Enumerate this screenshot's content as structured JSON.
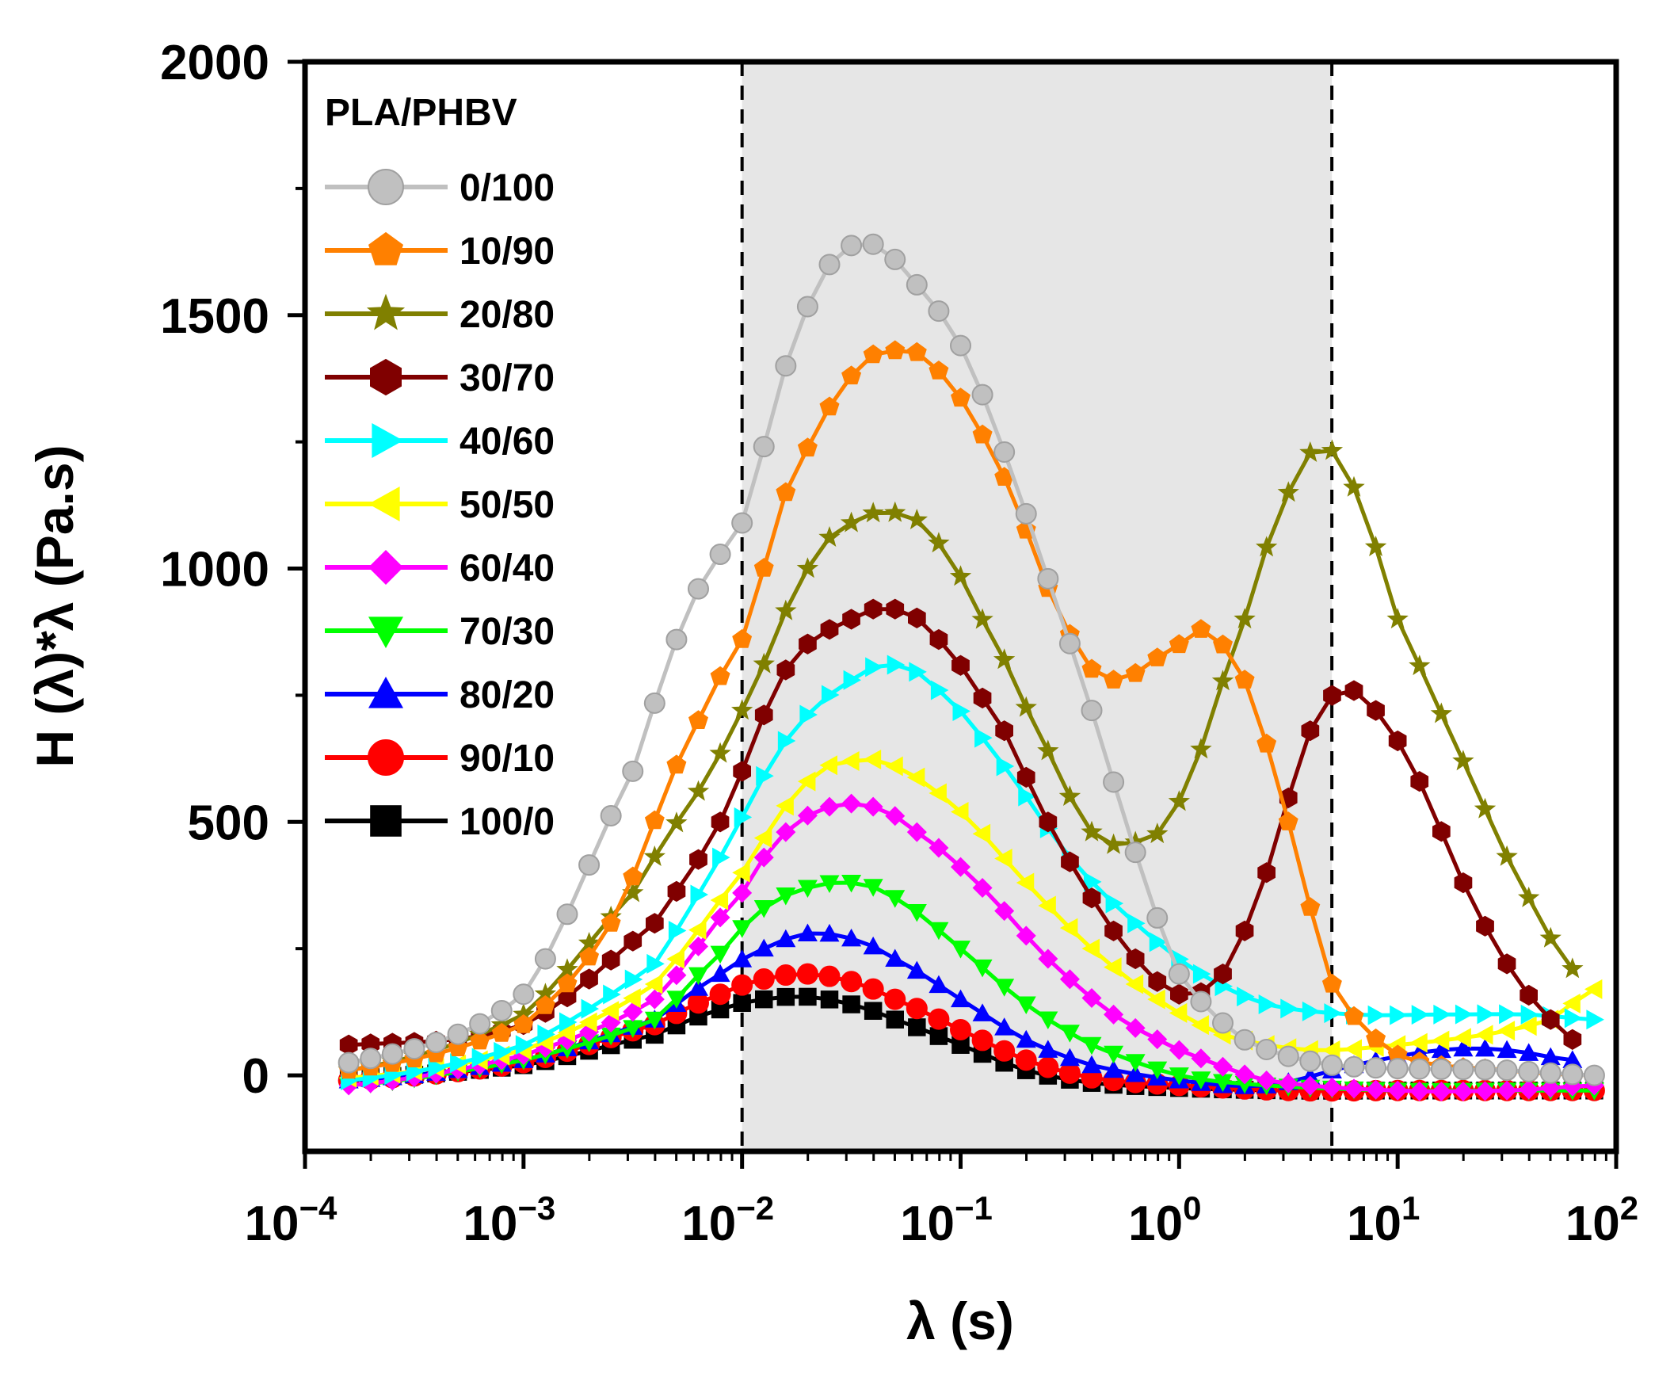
{
  "chart_data": {
    "type": "line",
    "title": "",
    "xlabel": "λ (s)",
    "ylabel": "H (λ)*λ (Pa.s)",
    "x_scale": "log",
    "xlim": [
      0.0001,
      100
    ],
    "ylim": [
      -150,
      2000
    ],
    "y_ticks": [
      0,
      500,
      1000,
      1500,
      2000
    ],
    "x_tick_labels": [
      {
        "value": 0.0001,
        "base": "10",
        "exp": "−4"
      },
      {
        "value": 0.001,
        "base": "10",
        "exp": "−3"
      },
      {
        "value": 0.01,
        "base": "10",
        "exp": "−2"
      },
      {
        "value": 0.1,
        "base": "10",
        "exp": "−1"
      },
      {
        "value": 1,
        "base": "10",
        "exp": "0"
      },
      {
        "value": 10,
        "base": "10",
        "exp": "1"
      },
      {
        "value": 100,
        "base": "10",
        "exp": "2"
      }
    ],
    "shaded_region": {
      "x_start": 0.01,
      "x_end": 5,
      "color": "#e6e6e6"
    },
    "dashed_lines_x": [
      0.01,
      5
    ],
    "legend_title": "PLA/PHBV",
    "legend_position": "top-left",
    "series": [
      {
        "name": "0/100",
        "color": "#c0c0c0",
        "marker": "circle",
        "points": [
          [
            -3.8,
            25
          ],
          [
            -3.0,
            160
          ],
          [
            -2.5,
            600
          ],
          [
            -2.2,
            960
          ],
          [
            -2.0,
            1090
          ],
          [
            -1.8,
            1400
          ],
          [
            -1.6,
            1600
          ],
          [
            -1.4,
            1640
          ],
          [
            -1.2,
            1560
          ],
          [
            -1.0,
            1440
          ],
          [
            -0.8,
            1230
          ],
          [
            -0.6,
            980
          ],
          [
            -0.4,
            720
          ],
          [
            -0.2,
            440
          ],
          [
            0.0,
            200
          ],
          [
            0.3,
            70
          ],
          [
            0.7,
            20
          ],
          [
            1.5,
            10
          ],
          [
            1.9,
            0
          ]
        ]
      },
      {
        "name": "10/90",
        "color": "#ff8000",
        "marker": "pentagon",
        "points": [
          [
            -3.8,
            10
          ],
          [
            -3.0,
            100
          ],
          [
            -2.6,
            300
          ],
          [
            -2.2,
            700
          ],
          [
            -2.0,
            860
          ],
          [
            -1.8,
            1150
          ],
          [
            -1.5,
            1380
          ],
          [
            -1.3,
            1430
          ],
          [
            -1.1,
            1390
          ],
          [
            -0.8,
            1180
          ],
          [
            -0.5,
            870
          ],
          [
            -0.3,
            780
          ],
          [
            0.0,
            850
          ],
          [
            0.1,
            880
          ],
          [
            0.3,
            780
          ],
          [
            0.5,
            500
          ],
          [
            0.7,
            180
          ],
          [
            1.0,
            40
          ],
          [
            1.5,
            10
          ],
          [
            1.9,
            0
          ]
        ]
      },
      {
        "name": "20/80",
        "color": "#808000",
        "marker": "star",
        "points": [
          [
            -3.8,
            10
          ],
          [
            -3.0,
            120
          ],
          [
            -2.5,
            360
          ],
          [
            -2.2,
            560
          ],
          [
            -2.0,
            720
          ],
          [
            -1.7,
            1000
          ],
          [
            -1.5,
            1090
          ],
          [
            -1.3,
            1110
          ],
          [
            -1.1,
            1050
          ],
          [
            -0.8,
            820
          ],
          [
            -0.6,
            640
          ],
          [
            -0.4,
            480
          ],
          [
            -0.2,
            460
          ],
          [
            0.0,
            540
          ],
          [
            0.3,
            900
          ],
          [
            0.5,
            1150
          ],
          [
            0.65,
            1240
          ],
          [
            0.8,
            1160
          ],
          [
            1.0,
            900
          ],
          [
            1.3,
            620
          ],
          [
            1.6,
            350
          ],
          [
            1.85,
            190
          ]
        ]
      },
      {
        "name": "30/70",
        "color": "#800000",
        "marker": "hexagon",
        "points": [
          [
            -3.8,
            60
          ],
          [
            -3.0,
            100
          ],
          [
            -2.4,
            300
          ],
          [
            -2.1,
            500
          ],
          [
            -1.8,
            800
          ],
          [
            -1.5,
            900
          ],
          [
            -1.3,
            920
          ],
          [
            -1.1,
            860
          ],
          [
            -0.8,
            680
          ],
          [
            -0.6,
            500
          ],
          [
            -0.4,
            350
          ],
          [
            -0.2,
            230
          ],
          [
            0.0,
            160
          ],
          [
            0.2,
            200
          ],
          [
            0.4,
            400
          ],
          [
            0.6,
            680
          ],
          [
            0.75,
            760
          ],
          [
            0.9,
            720
          ],
          [
            1.1,
            580
          ],
          [
            1.3,
            380
          ],
          [
            1.5,
            220
          ],
          [
            1.7,
            110
          ],
          [
            1.85,
            60
          ]
        ]
      },
      {
        "name": "40/60",
        "color": "#00ffff",
        "marker": "triangle-right",
        "points": [
          [
            -3.8,
            -10
          ],
          [
            -3.0,
            60
          ],
          [
            -2.4,
            220
          ],
          [
            -2.1,
            430
          ],
          [
            -1.8,
            660
          ],
          [
            -1.5,
            780
          ],
          [
            -1.3,
            810
          ],
          [
            -1.1,
            760
          ],
          [
            -0.8,
            610
          ],
          [
            -0.5,
            430
          ],
          [
            -0.2,
            300
          ],
          [
            0.1,
            200
          ],
          [
            0.4,
            140
          ],
          [
            0.8,
            120
          ],
          [
            1.2,
            120
          ],
          [
            1.6,
            120
          ],
          [
            1.9,
            110
          ]
        ]
      },
      {
        "name": "50/50",
        "color": "#ffff00",
        "marker": "triangle-left",
        "points": [
          [
            -3.8,
            -5
          ],
          [
            -3.0,
            50
          ],
          [
            -2.4,
            180
          ],
          [
            -2.0,
            400
          ],
          [
            -1.7,
            580
          ],
          [
            -1.5,
            620
          ],
          [
            -1.3,
            610
          ],
          [
            -1.0,
            520
          ],
          [
            -0.7,
            380
          ],
          [
            -0.4,
            250
          ],
          [
            -0.1,
            150
          ],
          [
            0.2,
            80
          ],
          [
            0.6,
            50
          ],
          [
            1.0,
            60
          ],
          [
            1.4,
            80
          ],
          [
            1.7,
            110
          ],
          [
            1.9,
            170
          ]
        ]
      },
      {
        "name": "60/40",
        "color": "#ff00ff",
        "marker": "diamond",
        "points": [
          [
            -3.8,
            -20
          ],
          [
            -3.0,
            40
          ],
          [
            -2.4,
            150
          ],
          [
            -2.0,
            360
          ],
          [
            -1.8,
            480
          ],
          [
            -1.6,
            530
          ],
          [
            -1.4,
            530
          ],
          [
            -1.2,
            480
          ],
          [
            -0.9,
            370
          ],
          [
            -0.6,
            230
          ],
          [
            -0.3,
            120
          ],
          [
            0.0,
            50
          ],
          [
            0.4,
            -10
          ],
          [
            1.0,
            -30
          ],
          [
            1.5,
            -30
          ],
          [
            1.9,
            -20
          ]
        ]
      },
      {
        "name": "70/30",
        "color": "#00ff00",
        "marker": "triangle-down",
        "points": [
          [
            -3.8,
            -20
          ],
          [
            -3.0,
            30
          ],
          [
            -2.4,
            110
          ],
          [
            -2.1,
            240
          ],
          [
            -1.9,
            330
          ],
          [
            -1.7,
            370
          ],
          [
            -1.5,
            380
          ],
          [
            -1.3,
            350
          ],
          [
            -1.0,
            250
          ],
          [
            -0.7,
            140
          ],
          [
            -0.4,
            60
          ],
          [
            0.0,
            0
          ],
          [
            0.4,
            -20
          ],
          [
            1.0,
            -30
          ],
          [
            1.5,
            -30
          ],
          [
            1.9,
            -30
          ]
        ]
      },
      {
        "name": "80/20",
        "color": "#0000ff",
        "marker": "triangle-up",
        "points": [
          [
            -3.8,
            -10
          ],
          [
            -3.0,
            30
          ],
          [
            -2.4,
            110
          ],
          [
            -2.1,
            200
          ],
          [
            -1.9,
            250
          ],
          [
            -1.7,
            280
          ],
          [
            -1.5,
            270
          ],
          [
            -1.3,
            230
          ],
          [
            -1.0,
            150
          ],
          [
            -0.7,
            70
          ],
          [
            -0.4,
            20
          ],
          [
            0.0,
            -10
          ],
          [
            0.4,
            -20
          ],
          [
            0.8,
            20
          ],
          [
            1.2,
            50
          ],
          [
            1.5,
            50
          ],
          [
            1.8,
            30
          ]
        ]
      },
      {
        "name": "90/10",
        "color": "#ff0000",
        "marker": "circle",
        "points": [
          [
            -3.8,
            -10
          ],
          [
            -3.0,
            25
          ],
          [
            -2.4,
            100
          ],
          [
            -2.1,
            160
          ],
          [
            -1.9,
            190
          ],
          [
            -1.7,
            200
          ],
          [
            -1.5,
            185
          ],
          [
            -1.3,
            150
          ],
          [
            -1.0,
            90
          ],
          [
            -0.7,
            30
          ],
          [
            -0.4,
            -5
          ],
          [
            0.0,
            -20
          ],
          [
            0.5,
            -30
          ],
          [
            1.0,
            -30
          ],
          [
            1.5,
            -30
          ],
          [
            1.9,
            -30
          ]
        ]
      },
      {
        "name": "100/0",
        "color": "#000000",
        "marker": "square",
        "points": [
          [
            -3.8,
            -5
          ],
          [
            -3.0,
            20
          ],
          [
            -2.4,
            80
          ],
          [
            -2.1,
            130
          ],
          [
            -1.9,
            150
          ],
          [
            -1.7,
            155
          ],
          [
            -1.5,
            140
          ],
          [
            -1.3,
            110
          ],
          [
            -1.0,
            60
          ],
          [
            -0.7,
            10
          ],
          [
            -0.4,
            -15
          ],
          [
            0.0,
            -25
          ],
          [
            0.5,
            -30
          ],
          [
            1.0,
            -30
          ],
          [
            1.5,
            -30
          ],
          [
            1.9,
            -30
          ]
        ]
      }
    ]
  }
}
